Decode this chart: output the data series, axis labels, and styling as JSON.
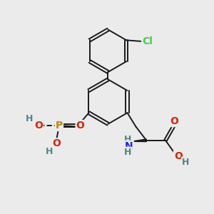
{
  "background_color": "#ebebeb",
  "bond_color": "#1a1a1a",
  "bond_width": 1.4,
  "atom_colors": {
    "C": "#1a1a1a",
    "H": "#4a8888",
    "O": "#dd2200",
    "N": "#2222ee",
    "P": "#bb8800",
    "Cl": "#44cc44"
  }
}
